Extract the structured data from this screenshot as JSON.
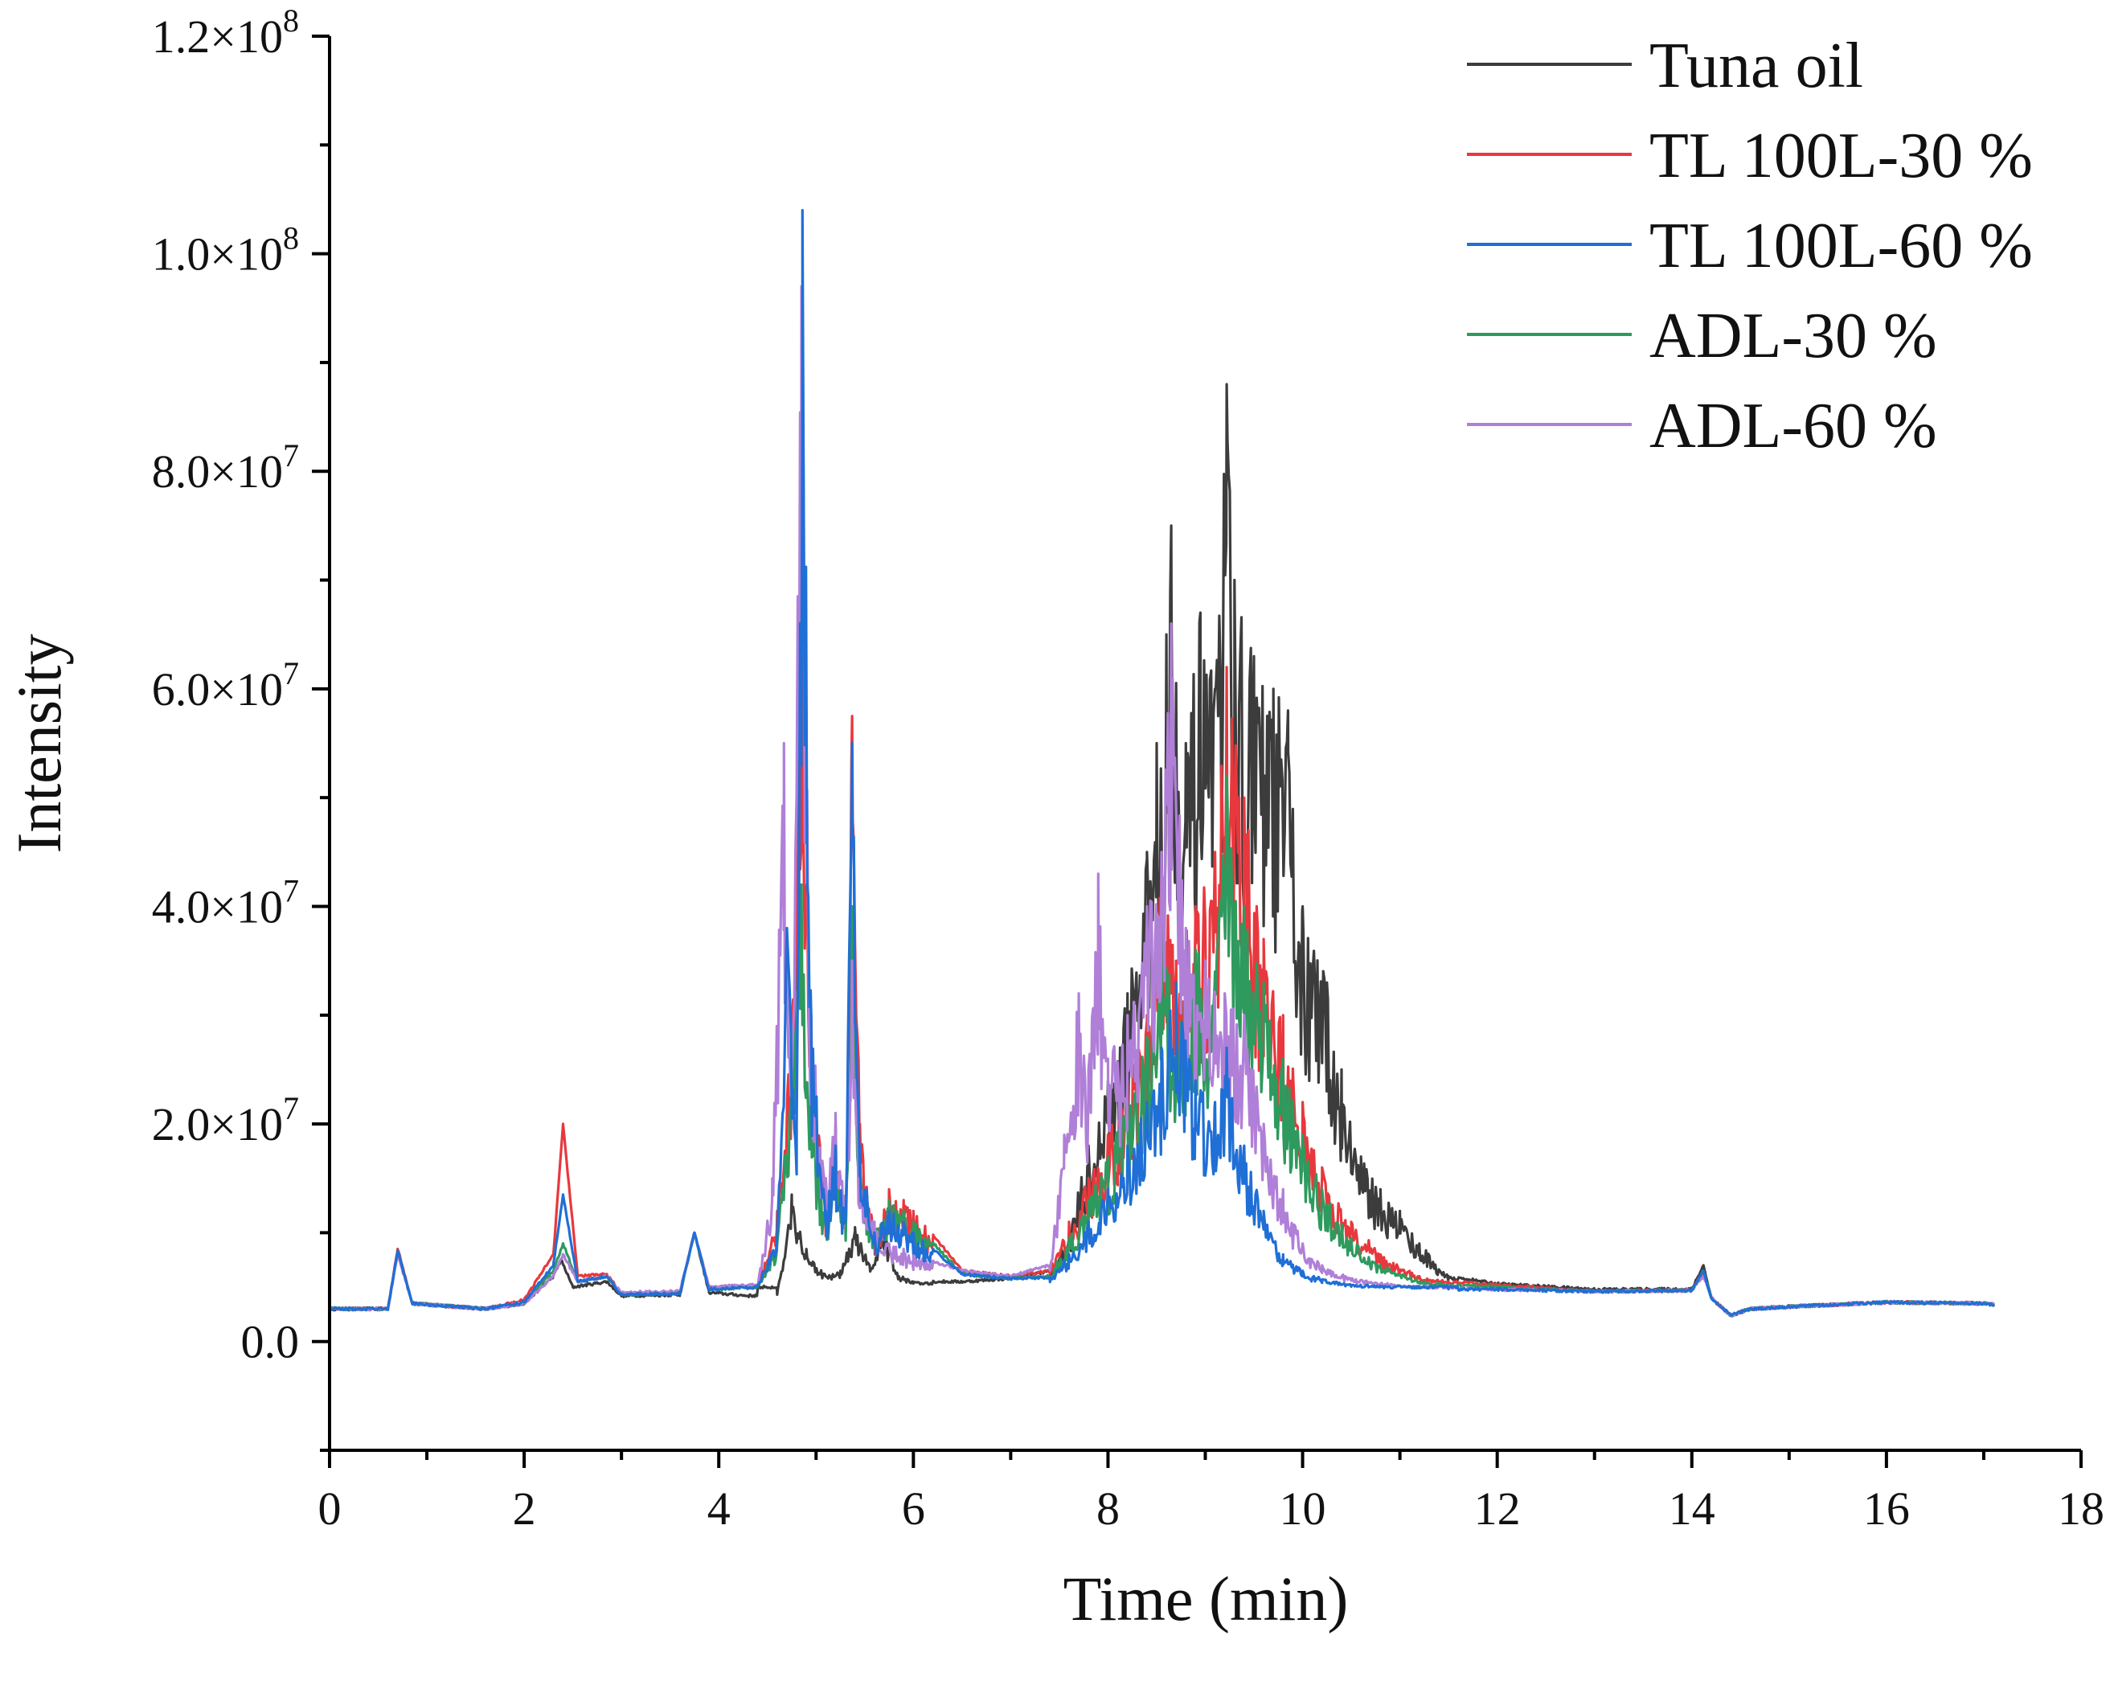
{
  "chart_data": {
    "type": "line",
    "title": "",
    "xlabel": "Time (min)",
    "ylabel": "Intensity",
    "xlim": [
      0,
      18
    ],
    "ylim": [
      -10000000,
      120000000
    ],
    "grid": false,
    "legend_position": "top-right",
    "x_ticks": [
      {
        "value": 0,
        "label": "0"
      },
      {
        "value": 2,
        "label": "2"
      },
      {
        "value": 4,
        "label": "4"
      },
      {
        "value": 6,
        "label": "6"
      },
      {
        "value": 8,
        "label": "8"
      },
      {
        "value": 10,
        "label": "10"
      },
      {
        "value": 12,
        "label": "12"
      },
      {
        "value": 14,
        "label": "14"
      },
      {
        "value": 16,
        "label": "16"
      },
      {
        "value": 18,
        "label": "18"
      }
    ],
    "y_ticks": [
      {
        "value": 0,
        "mantissa": "0.0",
        "exp": ""
      },
      {
        "value": 20000000,
        "mantissa": "2.0×10",
        "exp": "7"
      },
      {
        "value": 40000000,
        "mantissa": "4.0×10",
        "exp": "7"
      },
      {
        "value": 60000000,
        "mantissa": "6.0×10",
        "exp": "7"
      },
      {
        "value": 80000000,
        "mantissa": "8.0×10",
        "exp": "7"
      },
      {
        "value": 100000000,
        "mantissa": "1.0×10",
        "exp": "8"
      },
      {
        "value": 120000000,
        "mantissa": "1.2×10",
        "exp": "8"
      }
    ],
    "series": [
      {
        "name": "Tuna oil",
        "color": "#3c3c3c",
        "x": [
          0,
          0.6,
          0.7,
          0.85,
          1.6,
          2.0,
          2.3,
          2.38,
          2.5,
          2.85,
          3.0,
          3.6,
          3.75,
          3.9,
          4.3,
          4.6,
          4.75,
          4.9,
          5.1,
          5.25,
          5.4,
          5.55,
          5.7,
          5.85,
          6.0,
          6.5,
          7.0,
          7.4,
          7.6,
          7.8,
          8.0,
          8.2,
          8.4,
          8.5,
          8.6,
          8.65,
          8.8,
          8.95,
          9.1,
          9.22,
          9.3,
          9.5,
          9.7,
          9.85,
          10.0,
          10.25,
          10.4,
          10.6,
          10.8,
          11.0,
          11.2,
          11.5,
          12.0,
          13.0,
          14.0,
          14.12,
          14.2,
          14.4,
          14.6,
          15.0,
          16.0,
          17.0,
          17.1
        ],
        "y": [
          3000000,
          3000000,
          8500000,
          3500000,
          3000000,
          3500000,
          6000000,
          7500000,
          5000000,
          5500000,
          4200000,
          4300000,
          10000000,
          4500000,
          4200000,
          4300000,
          13500000,
          8500000,
          6000000,
          6500000,
          10500000,
          7000000,
          10000000,
          6000000,
          5500000,
          5500000,
          5800000,
          6500000,
          10000000,
          18000000,
          24000000,
          32000000,
          45000000,
          55000000,
          65000000,
          75000000,
          55000000,
          67000000,
          60000000,
          88000000,
          70000000,
          63000000,
          60000000,
          58000000,
          40000000,
          33000000,
          25000000,
          17000000,
          14000000,
          12000000,
          9000000,
          6000000,
          5300000,
          4800000,
          4800000,
          7000000,
          4000000,
          2400000,
          3000000,
          3200000,
          3600000,
          3500000,
          3400000
        ]
      },
      {
        "name": "TL 100L-30 %",
        "color": "#e8383d",
        "x": [
          0,
          0.6,
          0.7,
          0.85,
          1.6,
          2.0,
          2.3,
          2.4,
          2.55,
          2.85,
          3.0,
          3.6,
          3.75,
          3.9,
          4.4,
          4.6,
          4.75,
          4.85,
          4.95,
          5.1,
          5.2,
          5.3,
          5.37,
          5.45,
          5.6,
          5.75,
          5.9,
          6.0,
          6.5,
          7.0,
          7.4,
          7.6,
          7.8,
          8.0,
          8.2,
          8.4,
          8.55,
          8.7,
          8.9,
          9.1,
          9.22,
          9.4,
          9.6,
          9.8,
          10.0,
          10.2,
          10.5,
          10.8,
          11.2,
          11.5,
          12.0,
          13.0,
          14.0,
          14.12,
          14.2,
          14.4,
          14.6,
          15.0,
          16.0,
          17.0,
          17.1
        ],
        "y": [
          3000000,
          3000000,
          8500000,
          3500000,
          3000000,
          3800000,
          8000000,
          20000000,
          6000000,
          6200000,
          4400000,
          4500000,
          10000000,
          5000000,
          5000000,
          12000000,
          30000000,
          66000000,
          28000000,
          12000000,
          20000000,
          12000000,
          57500000,
          20000000,
          10000000,
          14000000,
          13000000,
          12000000,
          6500000,
          6000000,
          6500000,
          11000000,
          15000000,
          19000000,
          24000000,
          30000000,
          43000000,
          35000000,
          40000000,
          45000000,
          62000000,
          50000000,
          37000000,
          30000000,
          22000000,
          16000000,
          11000000,
          8000000,
          6000000,
          5500000,
          5200000,
          4600000,
          4700000,
          6500000,
          4000000,
          2400000,
          3000000,
          3200000,
          3600000,
          3500000,
          3400000
        ]
      },
      {
        "name": "TL 100L-60 %",
        "color": "#1f6fd6",
        "x": [
          0,
          0.6,
          0.7,
          0.85,
          1.6,
          2.0,
          2.3,
          2.4,
          2.55,
          2.85,
          3.0,
          3.6,
          3.75,
          3.9,
          4.4,
          4.6,
          4.7,
          4.8,
          4.86,
          4.95,
          5.1,
          5.2,
          5.3,
          5.37,
          5.45,
          5.6,
          5.75,
          5.9,
          6.0,
          6.5,
          7.0,
          7.4,
          7.6,
          7.8,
          8.0,
          8.2,
          8.4,
          8.55,
          8.7,
          8.9,
          9.1,
          9.22,
          9.4,
          9.6,
          9.8,
          10.0,
          10.2,
          10.5,
          10.8,
          11.2,
          11.5,
          12.0,
          13.0,
          14.0,
          14.12,
          14.2,
          14.4,
          14.6,
          15.0,
          16.0,
          17.0,
          17.1
        ],
        "y": [
          3000000,
          3000000,
          8300000,
          3500000,
          3000000,
          3600000,
          7000000,
          13500000,
          5500000,
          6000000,
          4300000,
          4400000,
          10000000,
          4800000,
          5000000,
          10000000,
          38000000,
          20000000,
          104000000,
          30000000,
          12000000,
          18000000,
          11000000,
          55000000,
          18000000,
          10000000,
          12000000,
          11000000,
          10000000,
          6200000,
          5800000,
          5900000,
          8000000,
          11000000,
          14000000,
          18000000,
          22000000,
          27000000,
          33000000,
          24000000,
          22000000,
          27000000,
          18000000,
          12000000,
          8000000,
          6500000,
          5700000,
          5200000,
          5000000,
          4900000,
          4800000,
          4800000,
          4600000,
          4700000,
          6500000,
          4000000,
          2400000,
          3000000,
          3200000,
          3600000,
          3500000,
          3400000
        ]
      },
      {
        "name": "ADL-30 %",
        "color": "#2e9a5e",
        "x": [
          0,
          0.6,
          0.7,
          0.85,
          1.6,
          2.0,
          2.3,
          2.4,
          2.55,
          2.85,
          3.0,
          3.6,
          3.75,
          3.9,
          4.4,
          4.6,
          4.75,
          4.85,
          4.95,
          5.1,
          5.2,
          5.3,
          5.37,
          5.45,
          5.6,
          5.75,
          5.9,
          6.0,
          6.5,
          7.0,
          7.4,
          7.6,
          7.8,
          8.0,
          8.2,
          8.4,
          8.55,
          8.7,
          8.9,
          9.1,
          9.22,
          9.4,
          9.6,
          9.8,
          10.0,
          10.2,
          10.5,
          10.8,
          11.2,
          11.5,
          12.0,
          13.0,
          14.0,
          14.12,
          14.2,
          14.4,
          14.6,
          15.0,
          16.0,
          17.0,
          17.1
        ],
        "y": [
          3000000,
          3000000,
          8300000,
          3500000,
          3000000,
          3500000,
          6500000,
          9000000,
          5500000,
          6000000,
          4300000,
          4400000,
          10000000,
          4800000,
          5000000,
          9000000,
          26000000,
          42000000,
          22000000,
          11000000,
          17000000,
          11000000,
          40000000,
          16000000,
          10000000,
          13000000,
          12000000,
          11000000,
          6200000,
          5800000,
          6000000,
          9500000,
          13000000,
          17000000,
          22000000,
          28000000,
          39000000,
          30000000,
          36000000,
          34000000,
          52000000,
          40000000,
          33000000,
          26000000,
          19000000,
          14000000,
          9500000,
          7000000,
          5500000,
          5200000,
          5000000,
          4600000,
          4700000,
          6500000,
          4000000,
          2400000,
          3000000,
          3200000,
          3600000,
          3500000,
          3400000
        ]
      },
      {
        "name": "ADL-60 %",
        "color": "#b07fd8",
        "x": [
          0,
          0.6,
          0.7,
          0.85,
          1.6,
          2.0,
          2.3,
          2.4,
          2.55,
          2.85,
          3.0,
          3.6,
          3.75,
          3.9,
          4.4,
          4.55,
          4.67,
          4.75,
          4.85,
          4.95,
          5.1,
          5.2,
          5.3,
          5.37,
          5.45,
          5.6,
          5.75,
          5.9,
          6.0,
          6.5,
          7.0,
          7.4,
          7.55,
          7.7,
          7.8,
          7.9,
          8.0,
          8.2,
          8.4,
          8.55,
          8.65,
          8.8,
          9.0,
          9.2,
          9.4,
          9.6,
          9.8,
          10.0,
          10.2,
          10.5,
          10.8,
          11.2,
          11.5,
          12.0,
          13.0,
          14.0,
          14.12,
          14.2,
          14.4,
          14.6,
          15.0,
          16.0,
          17.0,
          17.1
        ],
        "y": [
          3000000,
          3000000,
          8000000,
          3500000,
          3000000,
          3500000,
          6000000,
          8000000,
          5500000,
          6000000,
          4500000,
          4600000,
          10000000,
          5000000,
          5200000,
          15000000,
          55000000,
          25000000,
          97000000,
          30000000,
          15000000,
          21000000,
          13000000,
          35000000,
          15000000,
          11000000,
          9000000,
          8500000,
          8000000,
          6500000,
          6000000,
          7000000,
          19000000,
          32000000,
          25000000,
          43000000,
          26000000,
          30000000,
          40000000,
          45000000,
          66000000,
          38000000,
          35000000,
          32000000,
          30000000,
          20000000,
          14000000,
          9000000,
          7000000,
          5800000,
          5300000,
          5000000,
          4900000,
          4800000,
          4600000,
          4700000,
          6000000,
          4000000,
          2400000,
          3000000,
          3200000,
          3600000,
          3500000,
          3400000
        ]
      }
    ]
  }
}
